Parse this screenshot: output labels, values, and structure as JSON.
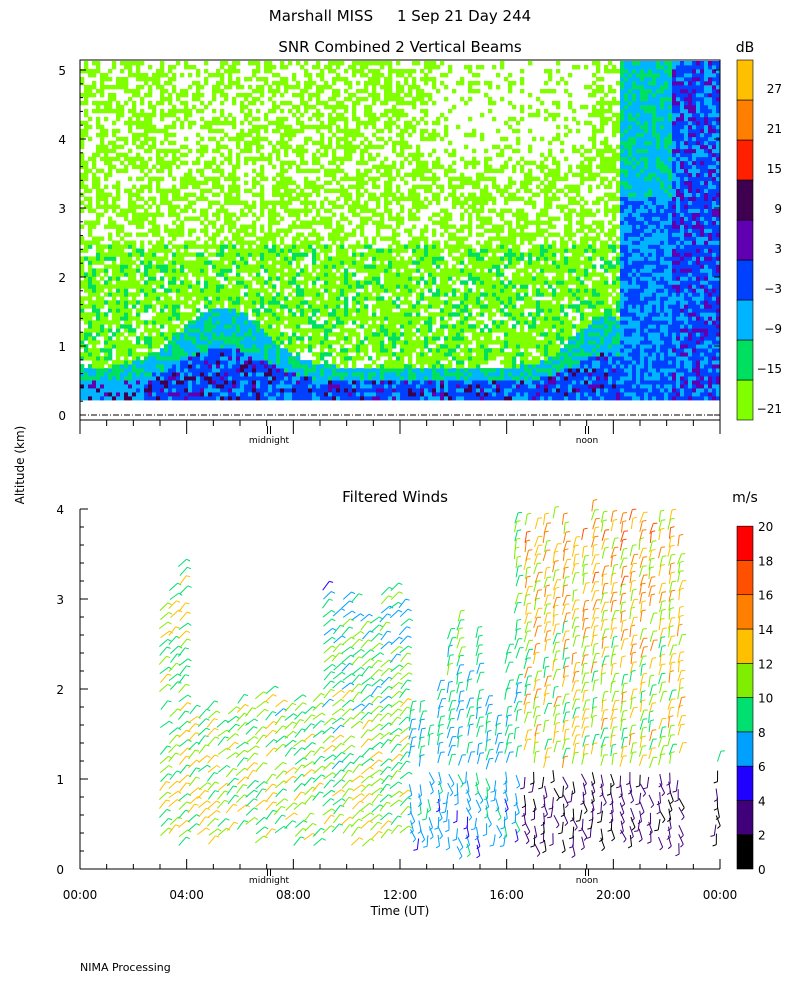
{
  "page": {
    "header": "Marshall MISS     1 Sep 21 Day 244",
    "footer": "NIMA Processing",
    "ylabel": "Altitude (km)"
  },
  "colors": {
    "snr_scale": [
      "#80ff00",
      "#00e060",
      "#00b4ff",
      "#0040ff",
      "#6000b0",
      "#400050",
      "#ff2000",
      "#ff8000",
      "#ffc000"
    ],
    "wind_scale": [
      "#000000",
      "#40007a",
      "#2000ff",
      "#00a0ff",
      "#00e070",
      "#80ee00",
      "#ffc000",
      "#ff8000",
      "#ff5000",
      "#ff0000"
    ]
  },
  "chart_data": [
    {
      "type": "heatmap",
      "title": "SNR Combined 2 Vertical Beams",
      "ylim": [
        0,
        5.2
      ],
      "yticks": [
        "0",
        "1",
        "2",
        "3",
        "4",
        "5"
      ],
      "x_markers": [
        "midnight",
        "noon"
      ],
      "colorbar": {
        "unit": "dB",
        "tick_labels": [
          "27",
          "21",
          "15",
          "9",
          "3",
          "−3",
          "−9",
          "−15",
          "−21"
        ]
      },
      "description": "Signal-to-noise ratio vs altitude and time; weak returns (green) aloft, strong returns (blue/purple) below 1 km, strong echoes near the right edge."
    },
    {
      "type": "scatter",
      "title": "Filtered Winds",
      "xlabel": "Time (UT)",
      "xticks": [
        "00:00",
        "04:00",
        "08:00",
        "12:00",
        "16:00",
        "20:00",
        "00:00"
      ],
      "ylim": [
        0,
        4
      ],
      "yticks": [
        "0",
        "1",
        "2",
        "3",
        "4"
      ],
      "x_markers": [
        "midnight",
        "noon"
      ],
      "colorbar": {
        "unit": "m/s",
        "tick_labels": [
          "20",
          "18",
          "16",
          "14",
          "12",
          "10",
          "8",
          "6",
          "4",
          "2",
          "0"
        ]
      },
      "description": "Wind barbs coloured by speed, 0-20 m/s; coverage from about 03:00 to 24:00 UT."
    }
  ]
}
